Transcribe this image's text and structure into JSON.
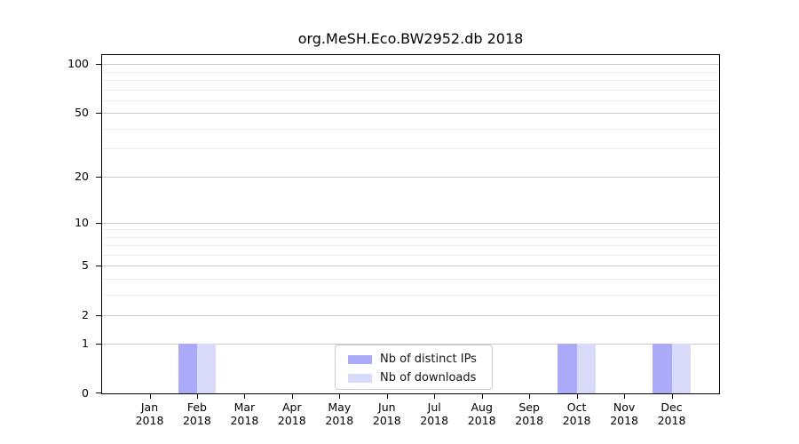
{
  "chart_data": {
    "type": "bar",
    "title": "org.MeSH.Eco.BW2952.db 2018",
    "categories": [
      "Jan 2018",
      "Feb 2018",
      "Mar 2018",
      "Apr 2018",
      "May 2018",
      "Jun 2018",
      "Jul 2018",
      "Aug 2018",
      "Sep 2018",
      "Oct 2018",
      "Nov 2018",
      "Dec 2018"
    ],
    "series": [
      {
        "name": "Nb of distinct IPs",
        "color": "#aaaaf8",
        "values": [
          0,
          1,
          0,
          0,
          0,
          0,
          0,
          0,
          0,
          1,
          0,
          1
        ]
      },
      {
        "name": "Nb of downloads",
        "color": "#d9d9fa",
        "values": [
          0,
          1,
          0,
          0,
          0,
          0,
          0,
          0,
          0,
          1,
          0,
          1
        ]
      }
    ],
    "yscale": "log1p",
    "ylim": [
      0,
      114
    ],
    "y_major_ticks": [
      0,
      1,
      2,
      5,
      10,
      20,
      50,
      100
    ],
    "y_minor_ticks": [
      3,
      4,
      6,
      7,
      8,
      9,
      30,
      40,
      60,
      70,
      80,
      90
    ],
    "grid": "horizontal",
    "legend_position": "lower-center-inside",
    "colors": {
      "axis": "#000000",
      "grid_major": "#c9c9c9",
      "grid_minor": "#ededed",
      "legend_border": "#cccccc",
      "background": "#ffffff"
    }
  }
}
